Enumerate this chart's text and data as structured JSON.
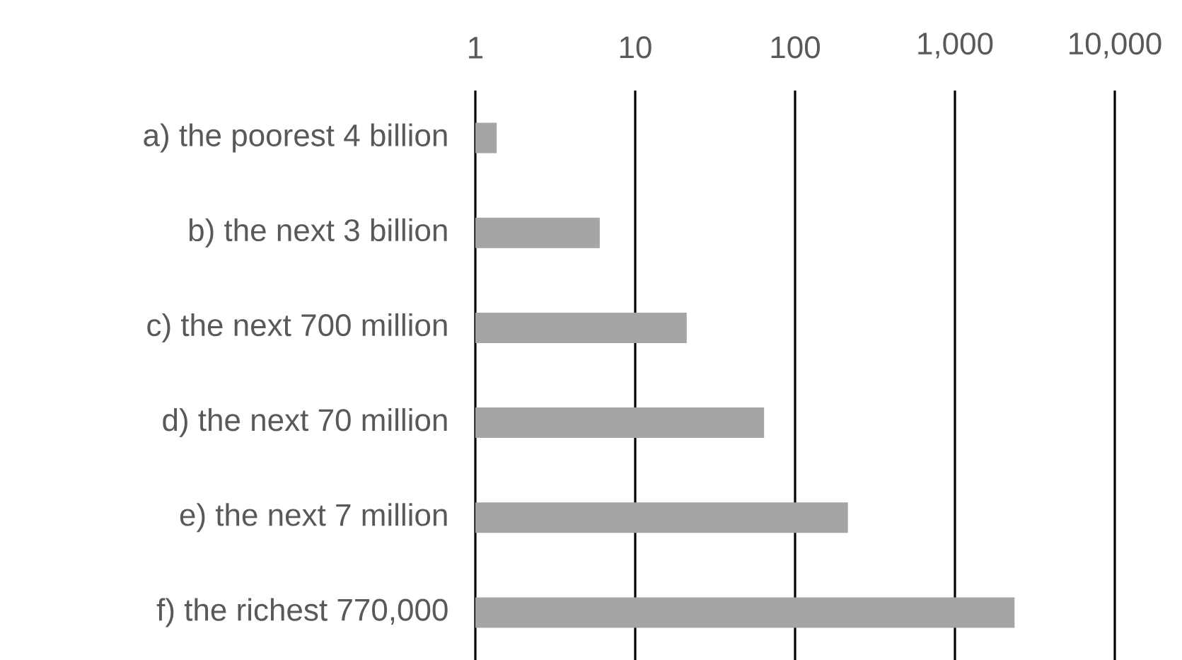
{
  "chart_data": {
    "type": "bar",
    "orientation": "horizontal",
    "log": "x",
    "grid": "x",
    "color": "#a5a5a5",
    "categories": [
      "a) the poorest 4 billion",
      "b) the next 3 billion",
      "c) the next 700 million",
      "d) the next 70 million",
      "e) the next 7 million",
      "f) the richest 770,000"
    ],
    "values": [
      1.36,
      6,
      21,
      64,
      214,
      2360
    ],
    "xlim": [
      1,
      10000
    ],
    "xticks": [
      {
        "value": 1,
        "label": "1"
      },
      {
        "value": 10,
        "label": "10"
      },
      {
        "value": 100,
        "label": "100"
      },
      {
        "value": 1000,
        "label": "1,000"
      },
      {
        "value": 10000,
        "label": "10,000"
      }
    ]
  }
}
